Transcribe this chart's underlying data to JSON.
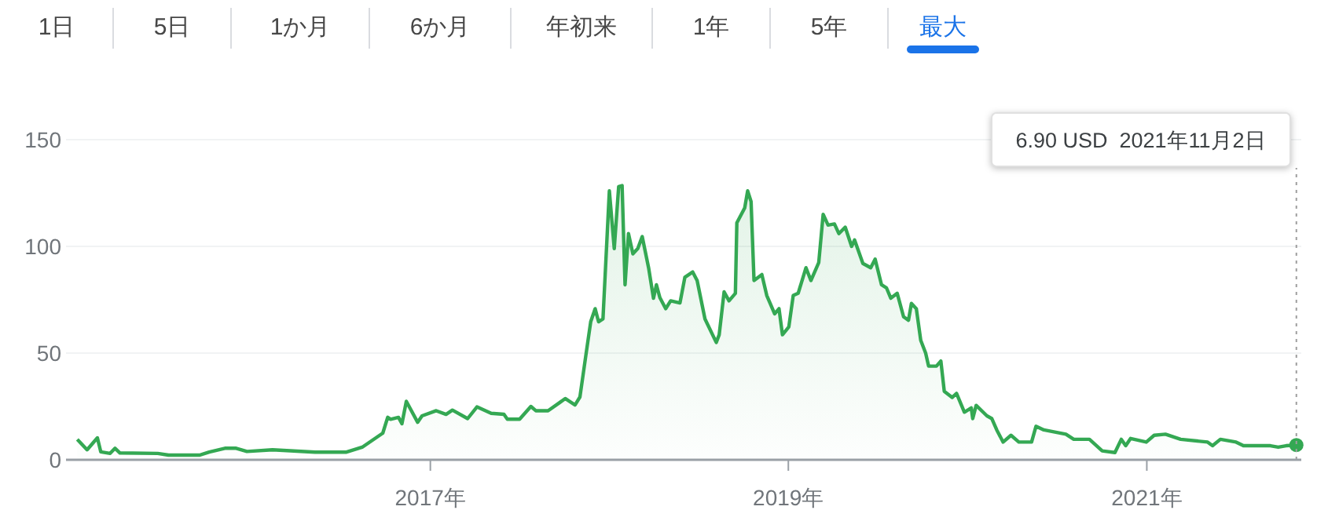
{
  "chart_data": {
    "type": "area",
    "x": [
      "2015-01-12",
      "2015-02-01",
      "2015-02-22",
      "2015-03-01",
      "2015-03-20",
      "2015-03-30",
      "2015-04-09",
      "2015-06-25",
      "2015-07-17",
      "2015-09-19",
      "2015-10-08",
      "2015-11-09",
      "2015-12-02",
      "2015-12-24",
      "2016-02-14",
      "2016-05-11",
      "2016-07-14",
      "2016-08-15",
      "2016-09-26",
      "2016-10-06",
      "2016-10-12",
      "2016-10-28",
      "2016-11-04",
      "2016-11-13",
      "2016-12-06",
      "2016-12-15",
      "2017-01-13",
      "2017-02-02",
      "2017-02-15",
      "2017-03-18",
      "2017-04-06",
      "2017-05-05",
      "2017-05-31",
      "2017-06-07",
      "2017-07-02",
      "2017-07-25",
      "2017-08-04",
      "2017-08-29",
      "2017-09-21",
      "2017-10-03",
      "2017-10-23",
      "2017-11-02",
      "2017-11-14",
      "2017-11-24",
      "2017-12-03",
      "2017-12-10",
      "2017-12-19",
      "2018-01-01",
      "2018-01-11",
      "2018-01-20",
      "2018-01-27",
      "2018-02-02",
      "2018-02-09",
      "2018-02-18",
      "2018-02-28",
      "2018-03-09",
      "2018-03-22",
      "2018-04-01",
      "2018-04-07",
      "2018-04-14",
      "2018-04-26",
      "2018-05-06",
      "2018-05-25",
      "2018-06-04",
      "2018-06-20",
      "2018-06-29",
      "2018-07-15",
      "2018-08-07",
      "2018-08-13",
      "2018-08-23",
      "2018-09-02",
      "2018-09-15",
      "2018-09-18",
      "2018-10-04",
      "2018-10-10",
      "2018-10-17",
      "2018-10-23",
      "2018-11-08",
      "2018-11-18",
      "2018-12-04",
      "2018-12-13",
      "2018-12-20",
      "2019-01-02",
      "2019-01-11",
      "2019-01-21",
      "2019-02-06",
      "2019-02-16",
      "2019-03-04",
      "2019-03-13",
      "2019-03-23",
      "2019-04-05",
      "2019-04-14",
      "2019-04-27",
      "2019-05-10",
      "2019-05-16",
      "2019-06-02",
      "2019-06-18",
      "2019-06-27",
      "2019-07-10",
      "2019-07-20",
      "2019-07-29",
      "2019-08-11",
      "2019-08-24",
      "2019-09-03",
      "2019-09-09",
      "2019-09-19",
      "2019-09-28",
      "2019-10-08",
      "2019-10-14",
      "2019-10-30",
      "2019-11-08",
      "2019-11-15",
      "2019-12-01",
      "2019-12-10",
      "2019-12-26",
      "2020-01-09",
      "2020-01-12",
      "2020-01-19",
      "2020-02-10",
      "2020-02-20",
      "2020-03-01",
      "2020-03-14",
      "2020-03-30",
      "2020-04-15",
      "2020-05-11",
      "2020-05-20",
      "2020-06-05",
      "2020-07-20",
      "2020-08-05",
      "2020-09-06",
      "2020-10-02",
      "2020-10-28",
      "2020-11-10",
      "2020-11-19",
      "2020-11-29",
      "2020-12-31",
      "2021-01-16",
      "2021-02-08",
      "2021-03-11",
      "2021-05-05",
      "2021-05-15",
      "2021-05-31",
      "2021-07-02",
      "2021-07-17",
      "2021-09-10",
      "2021-09-26",
      "2021-10-12",
      "2021-11-02"
    ],
    "series": [
      {
        "color": "#34a853",
        "values": [
          9.6,
          4.7,
          10.3,
          3.7,
          3,
          5.4,
          3.2,
          3,
          2.2,
          2.2,
          3.6,
          5.4,
          5.4,
          3.9,
          4.7,
          3.6,
          3.6,
          5.9,
          12.5,
          19.9,
          19,
          19.9,
          16.9,
          27.4,
          17.6,
          20.6,
          23,
          21.3,
          23.3,
          19.3,
          24.8,
          21.8,
          21.3,
          19,
          19,
          25,
          23,
          23,
          26.7,
          28.7,
          25.7,
          29.4,
          48.8,
          64.7,
          70.8,
          64.7,
          66,
          126,
          99,
          128,
          128.5,
          82,
          106,
          96.5,
          99,
          104.6,
          90,
          75.7,
          82,
          76,
          70.8,
          74.5,
          73.5,
          85.5,
          88,
          84,
          66,
          55,
          58.6,
          78.7,
          74.5,
          78,
          111,
          118,
          126,
          121,
          84,
          86.8,
          77,
          68.4,
          70.8,
          58.6,
          62.3,
          77,
          78,
          90,
          84,
          92.4,
          115,
          110,
          110.5,
          106,
          109,
          100,
          103,
          92,
          90,
          94,
          82,
          80.6,
          75.7,
          78,
          67,
          65.4,
          73.3,
          70.8,
          56,
          50,
          43.9,
          43.9,
          46.3,
          32.1,
          29.2,
          31.1,
          22.3,
          24.3,
          19.3,
          25.5,
          20.6,
          19.3,
          14,
          8.3,
          11.5,
          8.3,
          8.3,
          15.7,
          14,
          12,
          9.6,
          9.6,
          4.2,
          3.4,
          9.6,
          6.6,
          10,
          8.3,
          11.5,
          12,
          9.6,
          8.3,
          6.6,
          9.6,
          8.3,
          6.6,
          6.6,
          5.9,
          6.6,
          6.9
        ]
      }
    ],
    "xlim": [
      "2014-12-20",
      "2021-11-12"
    ],
    "xticks": [
      {
        "value": "2017-01-01",
        "label": "2017年"
      },
      {
        "value": "2019-01-01",
        "label": "2019年"
      },
      {
        "value": "2021-01-01",
        "label": "2021年"
      }
    ],
    "ylim": [
      0,
      150
    ],
    "yticks": [
      0,
      50,
      100,
      150
    ],
    "grid": "y",
    "ref_lines": [
      {
        "axis": "x",
        "value": "2021-11-02",
        "color": "#9e9e9e",
        "line_style": "dotted"
      }
    ],
    "annotations": [
      "1日",
      "5日",
      "1か月",
      "6か月",
      "年初来",
      "1年",
      "5年",
      "最大",
      "6.90 USD  2021年11月2日"
    ]
  }
}
